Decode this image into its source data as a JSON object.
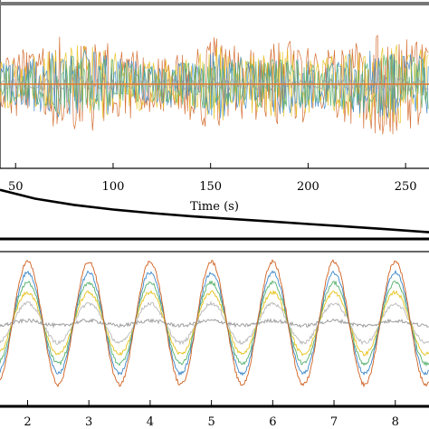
{
  "chart_data": [
    {
      "type": "line",
      "panel": "top",
      "x_ticks": [
        50,
        100,
        150,
        200,
        250
      ],
      "x_tick_labels": [
        "50",
        "100",
        "150",
        "200",
        "250"
      ],
      "xlabel": "Time (s)",
      "xlim": [
        42,
        262
      ],
      "series_colors": [
        "#d06020",
        "#e7c21a",
        "#3a86c8",
        "#54b06a",
        "#9a9a9a"
      ],
      "signal": {
        "baseline": 0,
        "envelope_points": [
          [
            42,
            0.55
          ],
          [
            60,
            0.75
          ],
          [
            80,
            1.0
          ],
          [
            100,
            0.8
          ],
          [
            120,
            0.55
          ],
          [
            140,
            0.7
          ],
          [
            155,
            0.95
          ],
          [
            170,
            0.7
          ],
          [
            190,
            0.85
          ],
          [
            205,
            0.65
          ],
          [
            225,
            0.85
          ],
          [
            240,
            1.0
          ],
          [
            262,
            0.8
          ]
        ]
      }
    },
    {
      "type": "line",
      "panel": "middle",
      "xlim": [
        42,
        262
      ],
      "ylim": [
        0,
        1
      ],
      "series": [
        {
          "x": [
            42,
            60,
            80,
            100,
            120,
            140,
            160,
            180,
            200,
            220,
            240,
            262
          ],
          "y": [
            0.95,
            0.78,
            0.66,
            0.57,
            0.5,
            0.44,
            0.39,
            0.34,
            0.29,
            0.24,
            0.19,
            0.13
          ]
        }
      ]
    },
    {
      "type": "line",
      "panel": "bottom",
      "x_ticks": [
        2,
        3,
        4,
        5,
        6,
        7,
        8
      ],
      "x_tick_labels": [
        "2",
        "3",
        "4",
        "5",
        "6",
        "7",
        "8"
      ],
      "xlim": [
        1.55,
        8.55
      ],
      "ylim": [
        -1.15,
        1.15
      ],
      "period": 1,
      "peak_phase": 0.0,
      "series": [
        {
          "color": "#d06020",
          "amplitude": 1.0
        },
        {
          "color": "#3a86c8",
          "amplitude": 0.82
        },
        {
          "color": "#54b06a",
          "amplitude": 0.66
        },
        {
          "color": "#e7c21a",
          "amplitude": 0.5
        },
        {
          "color": "#b8b8b8",
          "amplitude": 0.32
        },
        {
          "color": "#9a9a9a",
          "amplitude": 0.04
        }
      ]
    }
  ]
}
